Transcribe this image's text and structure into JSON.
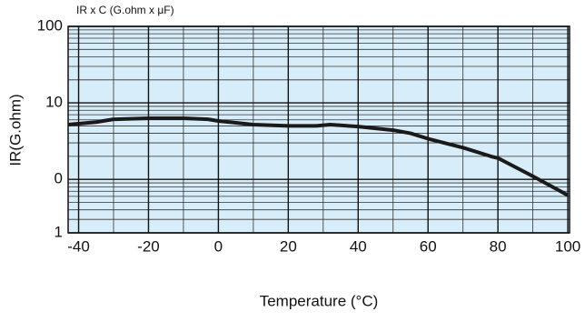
{
  "chart_data": {
    "type": "line",
    "title": "IR x C (G.ohm x μF)",
    "x_label": "Temperature (°C)",
    "y_label": "IR(G.ohm)",
    "x": [
      -43,
      -35,
      -30,
      -20,
      -10,
      -3,
      0,
      10,
      20,
      28,
      32,
      40,
      50,
      55,
      60,
      70,
      78,
      80,
      90,
      100
    ],
    "series": [
      {
        "color": "#1a1a1a",
        "values": [
          52,
          56,
          61,
          63,
          63,
          61,
          58,
          52,
          50,
          50,
          52,
          49,
          44,
          40,
          34,
          26,
          20,
          19,
          11,
          6.2
        ]
      }
    ],
    "xlim": [
      -43,
      100.5
    ],
    "xticks": [
      -40,
      -20,
      0,
      20,
      40,
      60,
      80,
      100
    ],
    "ylim": [
      2,
      1000
    ],
    "yticks": [
      {
        "value": 1000,
        "label": "100"
      },
      {
        "value": 100,
        "label": "10"
      },
      {
        "value": 10,
        "label": "0"
      },
      {
        "value": 2,
        "label": "1"
      }
    ],
    "log_scale_y": true,
    "grid": true,
    "background": "#d7edf9"
  }
}
